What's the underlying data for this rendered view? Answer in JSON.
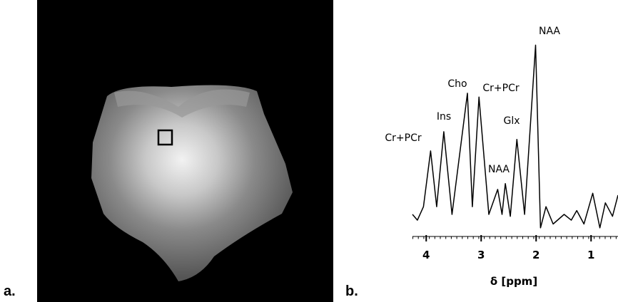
{
  "panels": {
    "a": "a.",
    "b": "b."
  },
  "chart_data": {
    "type": "line",
    "xlabel": "δ [ppm]",
    "x": [
      4.25,
      4.16,
      4.05,
      3.92,
      3.81,
      3.68,
      3.53,
      3.25,
      3.16,
      3.04,
      2.86,
      2.7,
      2.62,
      2.56,
      2.47,
      2.35,
      2.21,
      2.01,
      1.92,
      1.82,
      1.69,
      1.49,
      1.36,
      1.26,
      1.13,
      0.97,
      0.84,
      0.74,
      0.61,
      0.51
    ],
    "values": [
      10,
      7,
      14,
      43,
      14,
      53,
      10,
      73,
      14,
      71,
      10,
      23,
      10,
      26,
      9,
      49,
      10,
      98,
      3,
      14,
      5,
      10,
      7,
      12,
      5,
      21,
      3,
      16,
      9,
      20
    ],
    "color": "#000000",
    "xlim": [
      4.25,
      0.51
    ],
    "xticks": [
      4,
      3,
      2,
      1
    ],
    "ylim": [
      0,
      100
    ],
    "peak_labels": [
      "Cr+PCr",
      "Ins",
      "Cho",
      "Cr+PCr",
      "NAA",
      "Glx",
      "NAA"
    ]
  }
}
